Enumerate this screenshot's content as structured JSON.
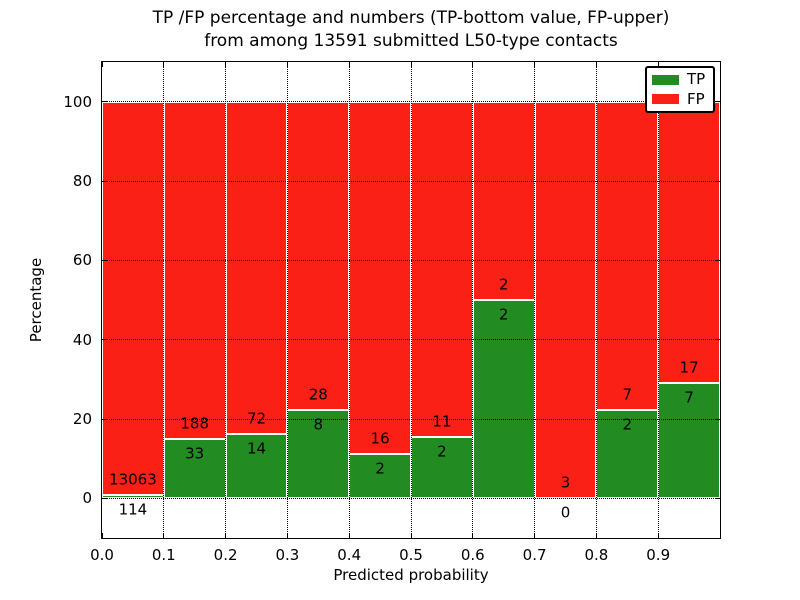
{
  "title": {
    "line1": "TP /FP percentage and numbers (TP-bottom value, FP-upper)",
    "line2": "from among 13591 submitted L50-type contacts"
  },
  "axes": {
    "xlabel": "Predicted probability",
    "ylabel": "Percentage",
    "xticks": [
      "0.0",
      "0.1",
      "0.2",
      "0.3",
      "0.4",
      "0.5",
      "0.6",
      "0.7",
      "0.8",
      "0.9"
    ],
    "yticks": [
      "0",
      "20",
      "40",
      "60",
      "80",
      "100"
    ],
    "xlim": [
      0.0,
      1.0
    ],
    "ylim": [
      -10,
      110
    ],
    "grid_style": "dotted"
  },
  "legend": {
    "position": "upper right",
    "items": [
      {
        "label": "TP",
        "color": "#228b22"
      },
      {
        "label": "FP",
        "color": "#fb2016"
      }
    ]
  },
  "colors": {
    "tp": "#228b22",
    "fp": "#fb2016",
    "bar_edge": "#ffffff",
    "grid": "#000000",
    "axis": "#000000",
    "text": "#000000",
    "background": "#ffffff"
  },
  "chart_data": {
    "type": "bar",
    "stacked": true,
    "normalized_to_percent": 100,
    "title": "TP /FP percentage and numbers (TP-bottom value, FP-upper) from among 13591 submitted L50-type contacts",
    "xlabel": "Predicted probability",
    "ylabel": "Percentage",
    "total_contacts": 13591,
    "bin_edges": [
      0.0,
      0.1,
      0.2,
      0.3,
      0.4,
      0.5,
      0.6,
      0.7,
      0.8,
      0.9,
      1.0
    ],
    "bins": [
      "0.0-0.1",
      "0.1-0.2",
      "0.2-0.3",
      "0.3-0.4",
      "0.4-0.5",
      "0.5-0.6",
      "0.6-0.7",
      "0.7-0.8",
      "0.8-0.9",
      "0.9-1.0"
    ],
    "series": [
      {
        "name": "TP",
        "counts": [
          114,
          33,
          14,
          8,
          2,
          2,
          2,
          0,
          2,
          7
        ],
        "percent": [
          0.87,
          14.93,
          16.28,
          22.22,
          11.11,
          15.38,
          50.0,
          0.0,
          22.22,
          29.17
        ]
      },
      {
        "name": "FP",
        "counts": [
          13063,
          188,
          72,
          28,
          16,
          11,
          2,
          3,
          7,
          17
        ],
        "percent": [
          99.13,
          85.07,
          83.72,
          77.78,
          88.89,
          84.62,
          50.0,
          100.0,
          77.78,
          70.83
        ]
      }
    ],
    "ylim": [
      -10,
      110
    ],
    "legend_position": "upper right",
    "grid": true
  }
}
